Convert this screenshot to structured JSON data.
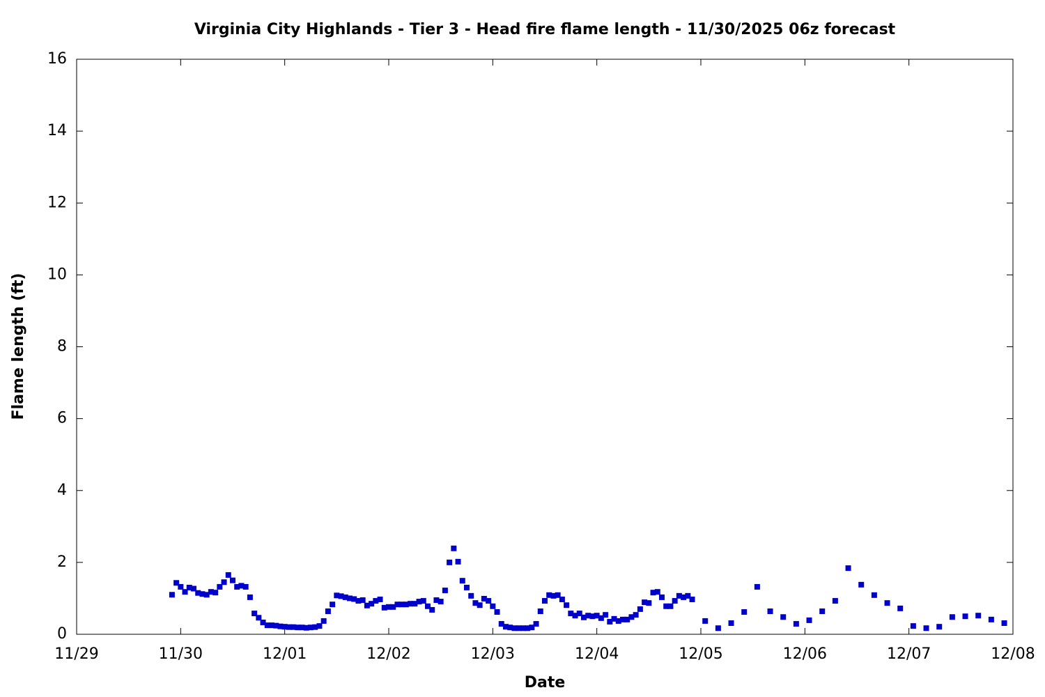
{
  "chart_data": {
    "type": "scatter",
    "title": "Virginia City Highlands - Tier 3 - Head fire flame length - 11/30/2025 06z forecast",
    "xlabel": "Date",
    "ylabel": "Flame length (ft)",
    "xlim": [
      0,
      216
    ],
    "xticks": [
      {
        "value": 0,
        "label": "11/29"
      },
      {
        "value": 24,
        "label": "11/30"
      },
      {
        "value": 48,
        "label": "12/01"
      },
      {
        "value": 72,
        "label": "12/02"
      },
      {
        "value": 96,
        "label": "12/03"
      },
      {
        "value": 120,
        "label": "12/04"
      },
      {
        "value": 144,
        "label": "12/05"
      },
      {
        "value": 168,
        "label": "12/06"
      },
      {
        "value": 192,
        "label": "12/07"
      },
      {
        "value": 216,
        "label": "12/08"
      }
    ],
    "ylim": [
      0,
      16
    ],
    "yticks": [
      0,
      2,
      4,
      6,
      8,
      10,
      12,
      14,
      16
    ],
    "color": "#0000cc",
    "x": [
      22,
      23,
      24,
      25,
      26,
      27,
      28,
      29,
      30,
      31,
      32,
      33,
      34,
      35,
      36,
      37,
      38,
      39,
      40,
      41,
      42,
      43,
      44,
      45,
      46,
      47,
      48,
      49,
      50,
      51,
      52,
      53,
      54,
      55,
      56,
      57,
      58,
      59,
      60,
      61,
      62,
      63,
      64,
      65,
      66,
      67,
      68,
      69,
      70,
      71,
      72,
      73,
      74,
      75,
      76,
      77,
      78,
      79,
      80,
      81,
      82,
      83,
      84,
      85,
      86,
      87,
      88,
      89,
      90,
      91,
      92,
      93,
      94,
      95,
      96,
      97,
      98,
      99,
      100,
      101,
      102,
      103,
      104,
      105,
      106,
      107,
      108,
      109,
      110,
      111,
      112,
      113,
      114,
      115,
      116,
      117,
      118,
      119,
      120,
      121,
      122,
      123,
      124,
      125,
      126,
      127,
      128,
      129,
      130,
      131,
      132,
      133,
      134,
      135,
      136,
      137,
      138,
      139,
      140,
      141,
      142,
      145,
      148,
      151,
      154,
      157,
      160,
      163,
      166,
      169,
      172,
      175,
      178,
      181,
      184,
      187,
      190,
      193,
      196,
      199,
      202,
      205,
      208,
      211,
      214
    ],
    "values": [
      1.1,
      1.43,
      1.32,
      1.18,
      1.3,
      1.27,
      1.15,
      1.12,
      1.1,
      1.18,
      1.16,
      1.32,
      1.45,
      1.65,
      1.5,
      1.32,
      1.35,
      1.32,
      1.03,
      0.58,
      0.46,
      0.33,
      0.25,
      0.25,
      0.24,
      0.22,
      0.21,
      0.2,
      0.2,
      0.19,
      0.19,
      0.18,
      0.19,
      0.2,
      0.23,
      0.37,
      0.64,
      0.83,
      1.08,
      1.06,
      1.03,
      1.0,
      0.98,
      0.93,
      0.95,
      0.8,
      0.85,
      0.93,
      0.97,
      0.74,
      0.76,
      0.76,
      0.83,
      0.83,
      0.83,
      0.85,
      0.85,
      0.91,
      0.93,
      0.78,
      0.68,
      0.95,
      0.91,
      1.22,
      2.0,
      2.39,
      2.02,
      1.49,
      1.3,
      1.07,
      0.87,
      0.81,
      0.99,
      0.93,
      0.78,
      0.62,
      0.29,
      0.21,
      0.19,
      0.17,
      0.17,
      0.17,
      0.17,
      0.19,
      0.29,
      0.64,
      0.93,
      1.09,
      1.07,
      1.09,
      0.97,
      0.81,
      0.58,
      0.52,
      0.58,
      0.47,
      0.52,
      0.5,
      0.52,
      0.45,
      0.54,
      0.35,
      0.43,
      0.37,
      0.41,
      0.41,
      0.48,
      0.54,
      0.7,
      0.89,
      0.87,
      1.16,
      1.18,
      1.03,
      0.78,
      0.78,
      0.93,
      1.07,
      1.03,
      1.07,
      0.97,
      0.37,
      0.17,
      0.31,
      0.62,
      1.32,
      0.64,
      0.48,
      0.29,
      0.39,
      0.64,
      0.93,
      1.84,
      1.38,
      1.09,
      0.87,
      0.72,
      0.23,
      0.17,
      0.21,
      0.48,
      0.5,
      0.52,
      0.41,
      0.31
    ]
  }
}
